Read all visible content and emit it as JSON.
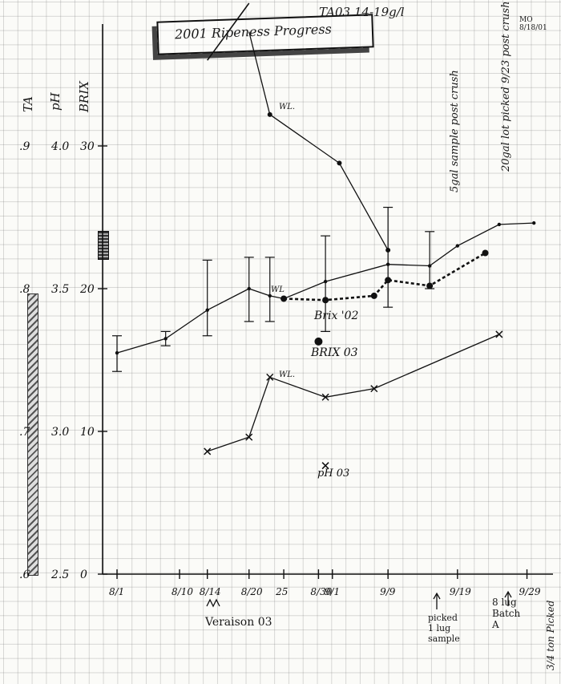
{
  "header": {
    "title": "2001 Ripeness Progress",
    "ta_note": "TA03 14-19g/l",
    "date_note": "MO 8/18/01"
  },
  "legend": {
    "ta_label": "TA",
    "ph_label": "pH",
    "brix_label": "BRIX"
  },
  "axis_labels": {
    "brix_ticks": [
      "30",
      "20",
      "10",
      "0"
    ],
    "ph_ticks": [
      "4.0",
      "3.5",
      "3.0",
      "2.5"
    ],
    "ta_ticks": [
      ".9",
      ".8",
      ".7",
      ".6"
    ],
    "x_ticks": [
      "8/1",
      "8/10",
      "8/14",
      "8/20",
      "25",
      "8/30",
      "9/1",
      "9/9",
      "9/19",
      "9/29"
    ]
  },
  "annotations": {
    "wl_1": "WL.",
    "wl_2": "WL",
    "wl_3": "WL.",
    "brix_02": "Brix '02",
    "brix_03": "BRIX 03",
    "ph_03": "pH 03",
    "veraison": "Veraison 03",
    "five_gal": "5gal sample post crush",
    "twenty_gal": "20gal lot picked 9/23 post crush",
    "picked_1lug": "picked 1 lug sample",
    "batch_a": "8 lug Batch A",
    "picked_oct": "3/4 ton Picked"
  },
  "chart_data": [
    {
      "type": "line",
      "name": "",
      "x_axis": "date",
      "y_axis": "brix",
      "ylim": [
        0,
        38
      ],
      "series": [
        {
          "name": "",
          "points": [
            {
              "x": "08-01",
              "y": 15.5
            },
            {
              "x": "08-08",
              "y": 16.5
            },
            {
              "x": "08-14",
              "y": 18.5
            },
            {
              "x": "08-20",
              "y": 20.0
            },
            {
              "x": "08-23",
              "y": 19.5
            },
            {
              "x": "08-25",
              "y": 19.3
            },
            {
              "x": "08-31",
              "y": 20.5
            },
            {
              "x": "09-09",
              "y": 21.7
            },
            {
              "x": "09-15",
              "y": 21.6
            },
            {
              "x": "09-19",
              "y": 23.0
            },
            {
              "x": "09-25",
              "y": 24.5
            },
            {
              "x": "09-30",
              "y": 24.6
            }
          ]
        },
        {
          "name": "Brix '02",
          "points": [
            {
              "x": "08-25",
              "y": 19.3
            },
            {
              "x": "08-31",
              "y": 19.2
            },
            {
              "x": "09-07",
              "y": 19.5
            },
            {
              "x": "09-09",
              "y": 20.6
            },
            {
              "x": "09-15",
              "y": 20.2
            },
            {
              "x": "09-23",
              "y": 22.5
            }
          ]
        }
      ],
      "error_bars": [
        {
          "x": "08-01",
          "low": 14.2,
          "high": 16.7
        },
        {
          "x": "08-08",
          "low": 16.0,
          "high": 17.0
        },
        {
          "x": "08-14",
          "low": 16.7,
          "high": 22.0
        },
        {
          "x": "08-20",
          "low": 17.7,
          "high": 22.2
        },
        {
          "x": "08-23",
          "low": 17.7,
          "high": 22.2
        },
        {
          "x": "08-31",
          "low": 17.0,
          "high": 23.7
        },
        {
          "x": "09-09",
          "low": 18.7,
          "high": 25.7
        },
        {
          "x": "09-15",
          "low": 20.0,
          "high": 24.0
        }
      ]
    },
    {
      "type": "line",
      "name": "",
      "x_axis": "date",
      "y_axis": "pH",
      "ylim": [
        2.5,
        4.4
      ],
      "series": [
        {
          "name": "",
          "points": [
            {
              "x": "08-14",
              "y": 2.93
            },
            {
              "x": "08-20",
              "y": 2.98
            },
            {
              "x": "08-23",
              "y": 3.19
            },
            {
              "x": "08-31",
              "y": 3.12
            },
            {
              "x": "09-07",
              "y": 3.15
            },
            {
              "x": "09-25",
              "y": 3.34
            }
          ]
        }
      ]
    },
    {
      "type": "line",
      "name": "",
      "x_axis": "date",
      "y_axis": "TA",
      "series": [
        {
          "name": "",
          "points": [
            {
              "x": "08-23",
              "y": 0.98
            },
            {
              "x": "08-31",
              "y": 0.96
            },
            {
              "x": "09-09",
              "y": 0.93
            },
            {
              "x": "09-09",
              "y": 0.91
            }
          ]
        }
      ]
    },
    {
      "type": "scatter",
      "name": "03 points",
      "points": [
        {
          "label": "BRIX 03",
          "x": "08-30",
          "y": 16.3
        },
        {
          "label": "pH 03",
          "x": "08-31",
          "y": 2.88
        }
      ]
    }
  ]
}
